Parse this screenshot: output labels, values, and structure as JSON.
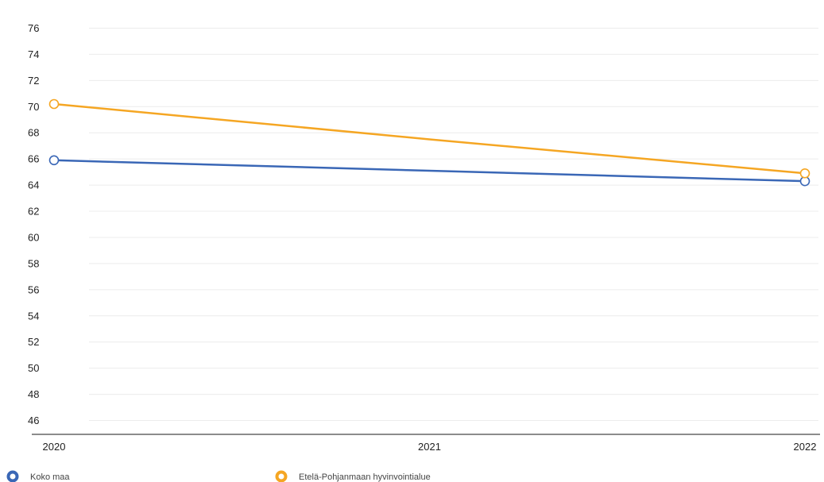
{
  "chart_data": {
    "type": "line",
    "title": "",
    "xlabel": "",
    "ylabel": "",
    "x": [
      "2020",
      "2021",
      "2022"
    ],
    "ylim": [
      45,
      77
    ],
    "yticks": [
      46,
      48,
      50,
      52,
      54,
      56,
      58,
      60,
      62,
      64,
      66,
      68,
      70,
      72,
      74,
      76
    ],
    "grid": true,
    "legend_position": "bottom",
    "series": [
      {
        "name": "Koko maa",
        "color": "#3a67b6",
        "values": [
          65.9,
          65.1,
          64.3
        ],
        "markers": [
          true,
          false,
          true
        ]
      },
      {
        "name": "Etelä-Pohjanmaan hyvinvointialue",
        "color": "#f5a623",
        "values": [
          70.2,
          67.5,
          64.9
        ],
        "markers": [
          true,
          false,
          true
        ]
      }
    ]
  }
}
